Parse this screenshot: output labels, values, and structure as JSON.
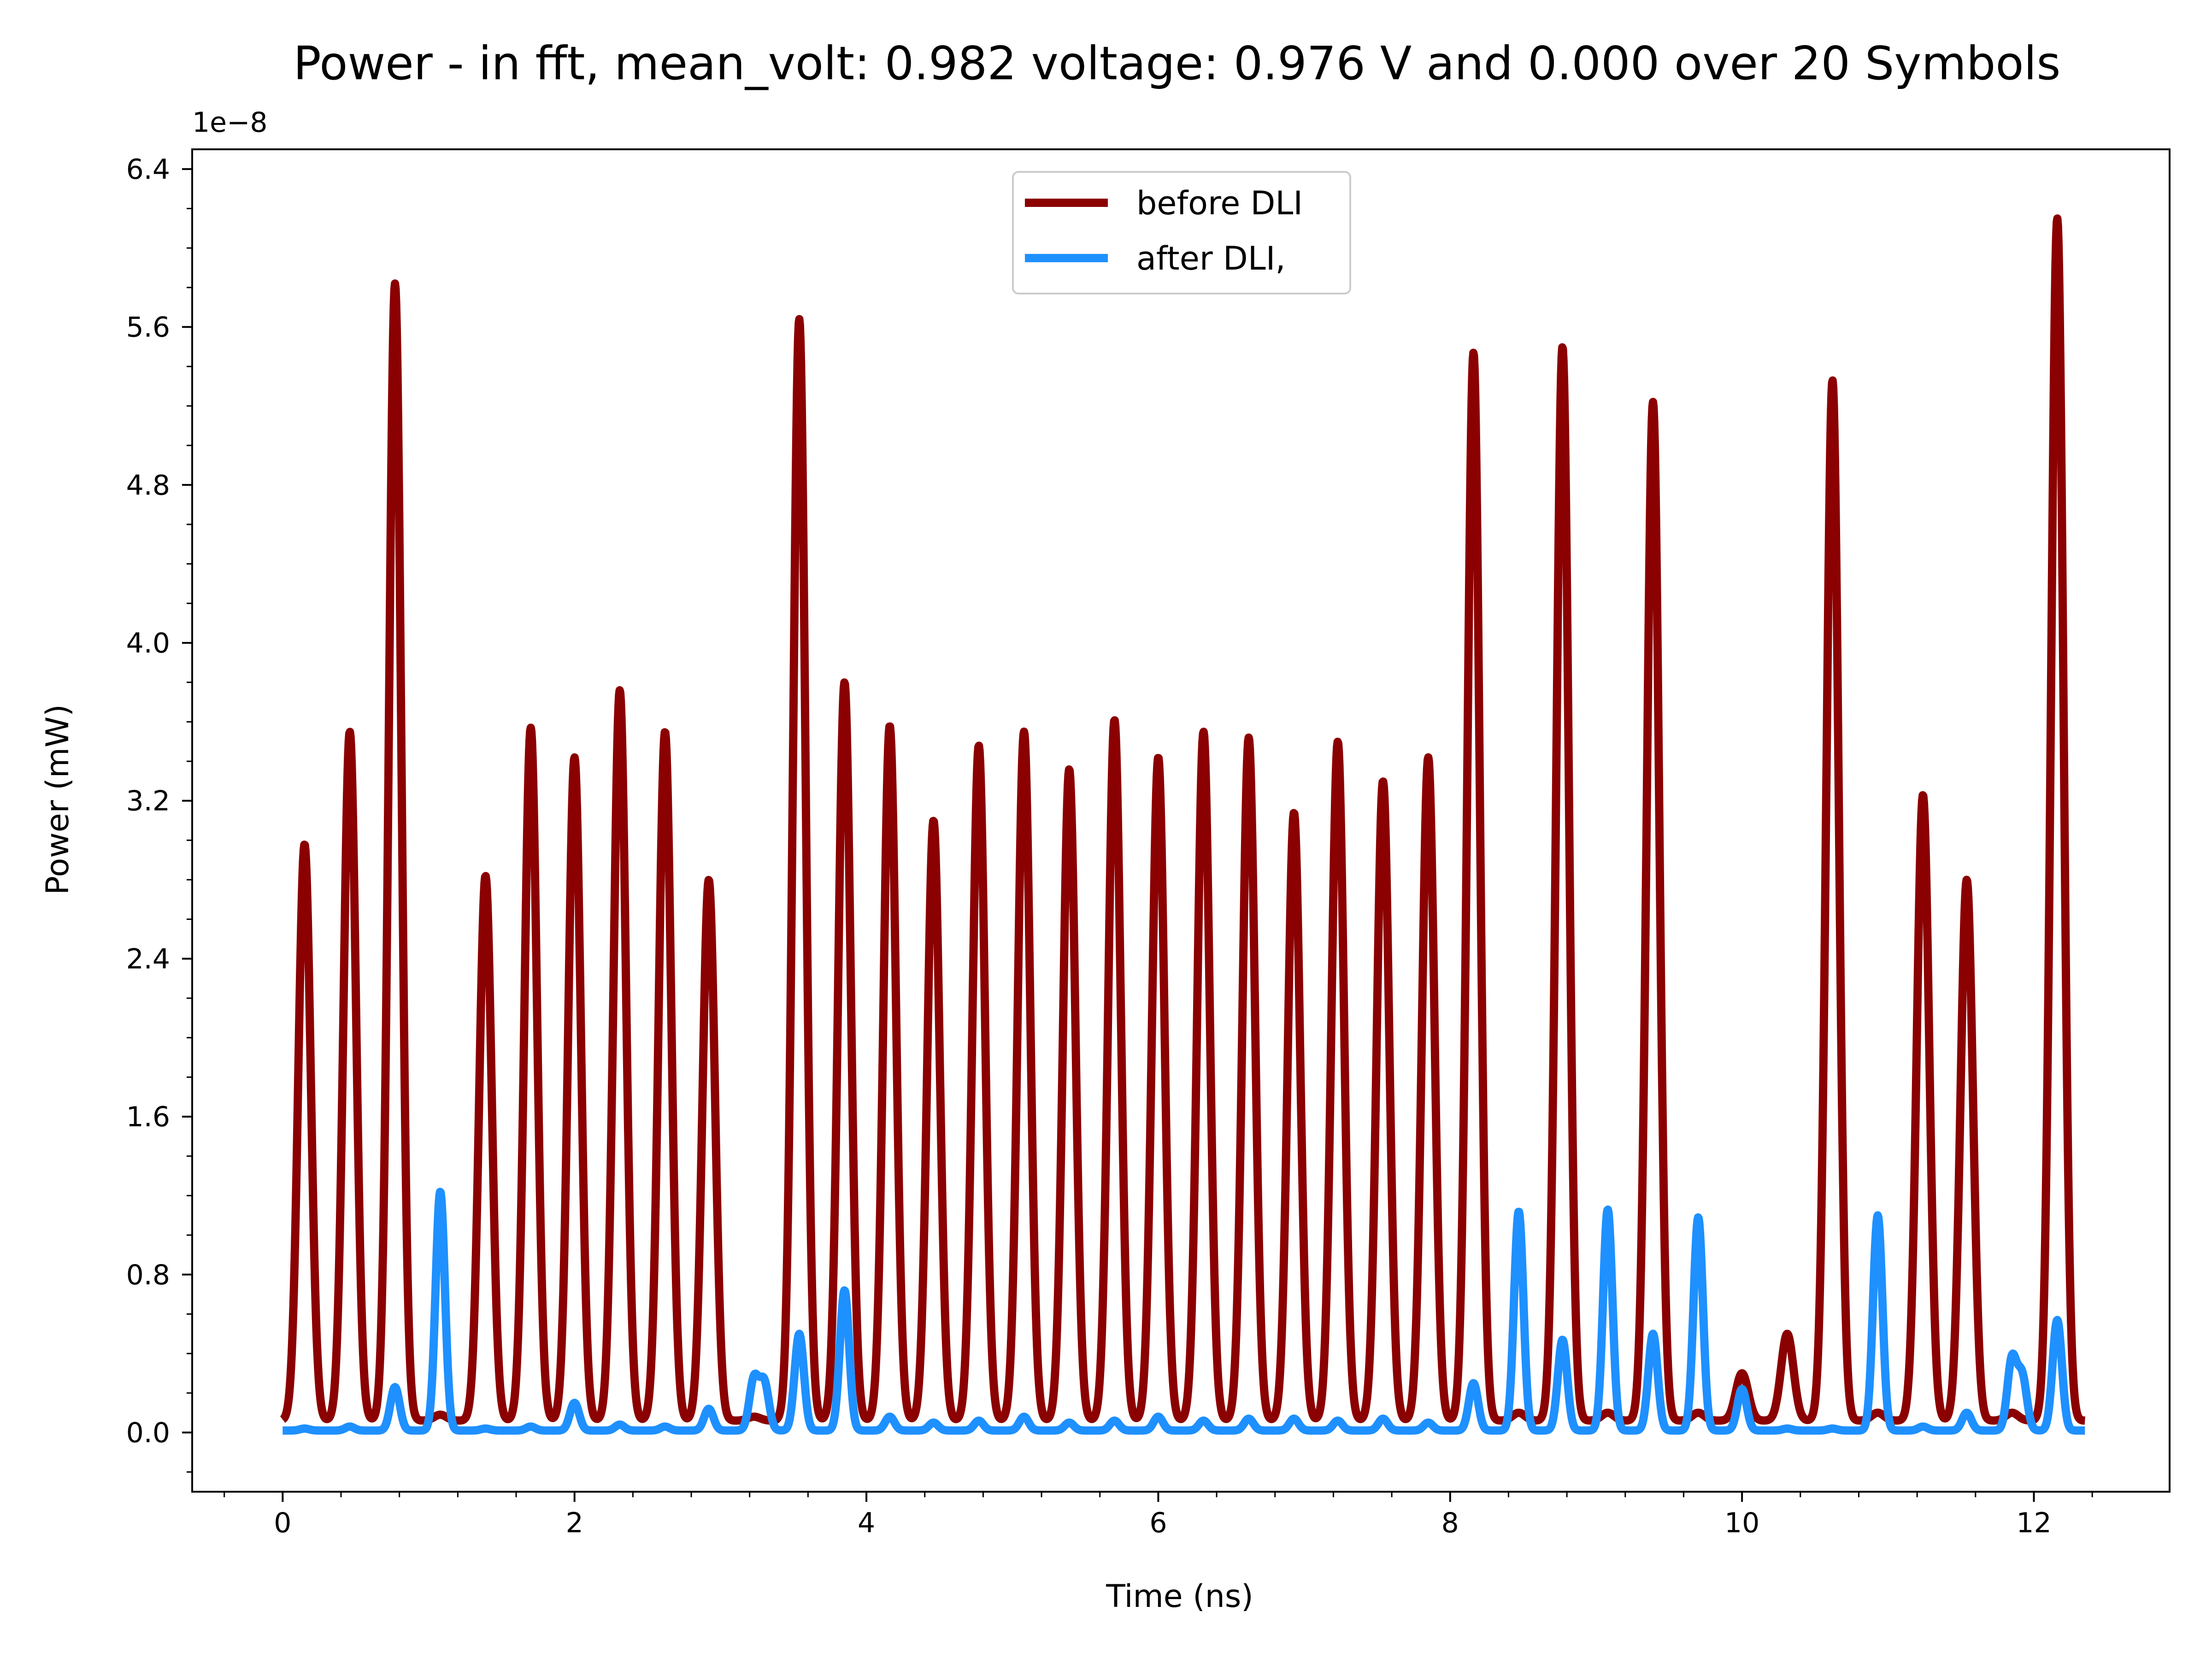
{
  "chart_data": {
    "type": "line",
    "title": "Power - in fft, mean_volt: 0.982 voltage: 0.976 V and 0.000 over 20 Symbols",
    "xlabel": "Time (ns)",
    "ylabel": "Power (mW)",
    "y_offset_label": "1e−8",
    "xlim": [
      -0.62,
      12.93
    ],
    "ylim": [
      -0.3,
      6.5
    ],
    "y_scale_factor": "1e-8",
    "x_ticks": [
      0,
      2,
      4,
      6,
      8,
      10,
      12
    ],
    "x_tick_labels": [
      "0",
      "2",
      "4",
      "6",
      "8",
      "10",
      "12"
    ],
    "y_ticks": [
      0.0,
      0.8,
      1.6,
      2.4,
      3.2,
      4.0,
      4.8,
      5.6,
      6.4
    ],
    "y_tick_labels": [
      "0.0",
      "0.8",
      "1.6",
      "2.4",
      "3.2",
      "4.0",
      "4.8",
      "5.6",
      "6.4"
    ],
    "x_range": [
      0.0,
      12.35
    ],
    "grid": false,
    "legend_position": "top-center",
    "series": [
      {
        "name": "before DLI",
        "color": "#8B0000",
        "baseline": 0.06,
        "peak_width": 0.06,
        "peaks": [
          [
            0.15,
            2.98
          ],
          [
            0.46,
            3.55
          ],
          [
            0.77,
            5.82
          ],
          [
            1.08,
            0.09
          ],
          [
            1.39,
            2.82
          ],
          [
            1.7,
            3.57
          ],
          [
            2.0,
            3.42
          ],
          [
            2.31,
            3.76
          ],
          [
            2.62,
            3.55
          ],
          [
            2.92,
            2.8
          ],
          [
            3.23,
            0.08
          ],
          [
            3.54,
            5.64
          ],
          [
            3.85,
            3.8
          ],
          [
            4.16,
            3.58
          ],
          [
            4.46,
            3.1
          ],
          [
            4.77,
            3.48
          ],
          [
            5.08,
            3.55
          ],
          [
            5.39,
            3.36
          ],
          [
            5.7,
            3.61
          ],
          [
            6.0,
            3.42
          ],
          [
            6.31,
            3.55
          ],
          [
            6.62,
            3.52
          ],
          [
            6.93,
            3.14
          ],
          [
            7.23,
            3.5
          ],
          [
            7.54,
            3.3
          ],
          [
            7.85,
            3.42
          ],
          [
            8.16,
            5.47
          ],
          [
            8.47,
            0.1
          ],
          [
            8.77,
            5.5
          ],
          [
            9.08,
            0.1
          ],
          [
            9.39,
            5.22
          ],
          [
            9.7,
            0.1
          ],
          [
            10.0,
            0.3
          ],
          [
            10.31,
            0.5
          ],
          [
            10.62,
            5.33
          ],
          [
            10.93,
            0.1
          ],
          [
            11.24,
            3.23
          ],
          [
            11.54,
            2.8
          ],
          [
            11.85,
            0.1
          ],
          [
            12.16,
            6.15
          ]
        ]
      },
      {
        "name": "after DLI,",
        "color": "#1E90FF",
        "baseline": 0.01,
        "peak_width": 0.045,
        "peaks": [
          [
            0.15,
            0.02
          ],
          [
            0.46,
            0.03
          ],
          [
            0.77,
            0.23
          ],
          [
            1.08,
            1.22
          ],
          [
            1.39,
            0.02
          ],
          [
            1.7,
            0.03
          ],
          [
            2.0,
            0.15
          ],
          [
            2.31,
            0.04
          ],
          [
            2.62,
            0.03
          ],
          [
            2.92,
            0.12
          ],
          [
            3.23,
            0.27
          ],
          [
            3.3,
            0.25
          ],
          [
            3.54,
            0.5
          ],
          [
            3.85,
            0.72
          ],
          [
            4.16,
            0.08
          ],
          [
            4.46,
            0.05
          ],
          [
            4.77,
            0.06
          ],
          [
            5.08,
            0.08
          ],
          [
            5.39,
            0.05
          ],
          [
            5.7,
            0.06
          ],
          [
            6.0,
            0.08
          ],
          [
            6.31,
            0.06
          ],
          [
            6.62,
            0.07
          ],
          [
            6.93,
            0.07
          ],
          [
            7.23,
            0.06
          ],
          [
            7.54,
            0.07
          ],
          [
            7.85,
            0.05
          ],
          [
            8.16,
            0.25
          ],
          [
            8.47,
            1.12
          ],
          [
            8.77,
            0.47
          ],
          [
            9.08,
            1.13
          ],
          [
            9.39,
            0.5
          ],
          [
            9.7,
            1.09
          ],
          [
            10.0,
            0.22
          ],
          [
            10.31,
            0.02
          ],
          [
            10.62,
            0.02
          ],
          [
            10.93,
            1.1
          ],
          [
            11.24,
            0.03
          ],
          [
            11.54,
            0.1
          ],
          [
            11.85,
            0.37
          ],
          [
            11.92,
            0.28
          ],
          [
            12.16,
            0.57
          ]
        ]
      }
    ]
  }
}
